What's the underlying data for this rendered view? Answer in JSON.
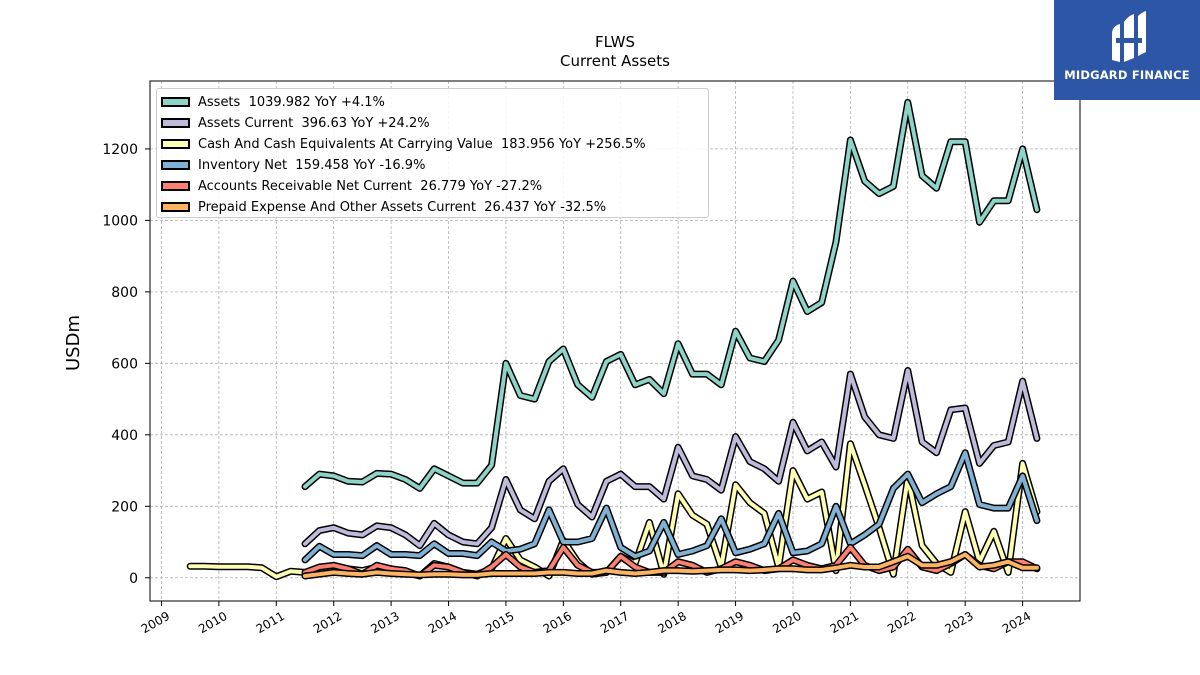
{
  "header": {
    "ticker": "FLWS",
    "subtitle": "Current  Assets"
  },
  "logo": {
    "text": "MIDGARD FINANCE",
    "icon": "midgard-logo-icon",
    "background": "#2d56a6"
  },
  "chart_data": {
    "type": "line",
    "ylabel": "USDm",
    "xlabel": "",
    "ylim": [
      -65,
      1390
    ],
    "xlim": [
      2008.8,
      2025.0
    ],
    "grid": true,
    "legend_position": "top-left",
    "yticks": [
      0,
      200,
      400,
      600,
      800,
      1000,
      1200
    ],
    "xticks": [
      "2009",
      "2010",
      "2011",
      "2012",
      "2013",
      "2014",
      "2015",
      "2016",
      "2017",
      "2018",
      "2019",
      "2020",
      "2021",
      "2022",
      "2023",
      "2024"
    ],
    "series": [
      {
        "name": "Assets",
        "legend": "Assets  1039.982 YoY +4.1%",
        "color": "#8dd3c7",
        "x": [
          2011.5,
          2011.75,
          2012.0,
          2012.25,
          2012.5,
          2012.75,
          2013.0,
          2013.25,
          2013.5,
          2013.75,
          2014.0,
          2014.25,
          2014.5,
          2014.75,
          2015.0,
          2015.25,
          2015.5,
          2015.75,
          2016.0,
          2016.25,
          2016.5,
          2016.75,
          2017.0,
          2017.25,
          2017.5,
          2017.75,
          2018.0,
          2018.25,
          2018.5,
          2018.75,
          2019.0,
          2019.25,
          2019.5,
          2019.75,
          2020.0,
          2020.25,
          2020.5,
          2020.75,
          2021.0,
          2021.25,
          2021.5,
          2021.75,
          2022.0,
          2022.25,
          2022.5,
          2022.75,
          2023.0,
          2023.25,
          2023.5,
          2023.75,
          2024.0,
          2024.25
        ],
        "values": [
          255,
          290,
          285,
          270,
          268,
          292,
          290,
          275,
          250,
          305,
          285,
          265,
          265,
          315,
          600,
          510,
          500,
          605,
          640,
          540,
          505,
          605,
          625,
          540,
          555,
          515,
          655,
          570,
          570,
          540,
          690,
          615,
          605,
          665,
          830,
          745,
          770,
          940,
          1225,
          1110,
          1075,
          1095,
          1330,
          1125,
          1090,
          1220,
          1220,
          995,
          1055,
          1055,
          1200,
          1030
        ]
      },
      {
        "name": "Assets Current",
        "legend": "Assets Current  396.63 YoY +24.2%",
        "color": "#bebada",
        "x": [
          2011.5,
          2011.75,
          2012.0,
          2012.25,
          2012.5,
          2012.75,
          2013.0,
          2013.25,
          2013.5,
          2013.75,
          2014.0,
          2014.25,
          2014.5,
          2014.75,
          2015.0,
          2015.25,
          2015.5,
          2015.75,
          2016.0,
          2016.25,
          2016.5,
          2016.75,
          2017.0,
          2017.25,
          2017.5,
          2017.75,
          2018.0,
          2018.25,
          2018.5,
          2018.75,
          2019.0,
          2019.25,
          2019.5,
          2019.75,
          2020.0,
          2020.25,
          2020.5,
          2020.75,
          2021.0,
          2021.25,
          2021.5,
          2021.75,
          2022.0,
          2022.25,
          2022.5,
          2022.75,
          2023.0,
          2023.25,
          2023.5,
          2023.75,
          2024.0,
          2024.25
        ],
        "values": [
          95,
          132,
          140,
          125,
          120,
          145,
          140,
          120,
          90,
          152,
          120,
          100,
          95,
          140,
          275,
          190,
          165,
          270,
          305,
          205,
          170,
          270,
          290,
          255,
          255,
          220,
          365,
          285,
          275,
          245,
          395,
          325,
          305,
          270,
          435,
          355,
          380,
          310,
          570,
          450,
          400,
          390,
          580,
          380,
          350,
          470,
          475,
          320,
          370,
          380,
          550,
          390
        ]
      },
      {
        "name": "Cash And Cash Equivalents At Carrying Value",
        "legend": "Cash And Cash Equivalents At Carrying Value  183.956 YoY +256.5%",
        "color": "#ffffb3",
        "x": [
          2009.5,
          2009.75,
          2010.0,
          2010.25,
          2010.5,
          2010.75,
          2011.0,
          2011.25,
          2011.5,
          2011.75,
          2012.0,
          2012.25,
          2012.5,
          2012.75,
          2013.0,
          2013.25,
          2013.5,
          2013.75,
          2014.0,
          2014.25,
          2014.5,
          2014.75,
          2015.0,
          2015.25,
          2015.5,
          2015.75,
          2016.0,
          2016.25,
          2016.5,
          2016.75,
          2017.0,
          2017.25,
          2017.5,
          2017.75,
          2018.0,
          2018.25,
          2018.5,
          2018.75,
          2019.0,
          2019.25,
          2019.5,
          2019.75,
          2020.0,
          2020.25,
          2020.5,
          2020.75,
          2021.0,
          2021.25,
          2021.5,
          2021.75,
          2022.0,
          2022.25,
          2022.5,
          2022.75,
          2023.0,
          2023.25,
          2023.5,
          2023.75,
          2024.0,
          2024.25
        ],
        "values": [
          32,
          32,
          31,
          31,
          31,
          28,
          3,
          18,
          15,
          25,
          30,
          25,
          20,
          30,
          25,
          15,
          5,
          40,
          30,
          15,
          10,
          25,
          110,
          50,
          30,
          5,
          105,
          45,
          10,
          15,
          60,
          40,
          155,
          10,
          235,
          175,
          150,
          30,
          260,
          210,
          180,
          30,
          300,
          220,
          240,
          20,
          375,
          260,
          140,
          10,
          280,
          90,
          40,
          15,
          185,
          45,
          130,
          15,
          320,
          185
        ]
      },
      {
        "name": "Inventory Net",
        "legend": "Inventory Net  159.458 YoY -16.9%",
        "color": "#80b1d3",
        "x": [
          2011.5,
          2011.75,
          2012.0,
          2012.25,
          2012.5,
          2012.75,
          2013.0,
          2013.25,
          2013.5,
          2013.75,
          2014.0,
          2014.25,
          2014.5,
          2014.75,
          2015.0,
          2015.25,
          2015.5,
          2015.75,
          2016.0,
          2016.25,
          2016.5,
          2016.75,
          2017.0,
          2017.25,
          2017.5,
          2017.75,
          2018.0,
          2018.25,
          2018.5,
          2018.75,
          2019.0,
          2019.25,
          2019.5,
          2019.75,
          2020.0,
          2020.25,
          2020.5,
          2020.75,
          2021.0,
          2021.25,
          2021.5,
          2021.75,
          2022.0,
          2022.25,
          2022.5,
          2022.75,
          2023.0,
          2023.25,
          2023.5,
          2023.75,
          2024.0,
          2024.25
        ],
        "values": [
          50,
          88,
          65,
          65,
          62,
          90,
          65,
          65,
          62,
          95,
          68,
          68,
          62,
          100,
          75,
          80,
          95,
          190,
          100,
          100,
          110,
          195,
          85,
          60,
          75,
          155,
          65,
          75,
          90,
          165,
          70,
          80,
          95,
          180,
          70,
          75,
          95,
          200,
          95,
          120,
          150,
          250,
          290,
          210,
          235,
          255,
          350,
          205,
          195,
          195,
          285,
          160
        ]
      },
      {
        "name": "Accounts Receivable Net Current",
        "legend": "Accounts Receivable Net Current  26.779 YoY -27.2%",
        "color": "#fb8072",
        "x": [
          2011.5,
          2011.75,
          2012.0,
          2012.25,
          2012.5,
          2012.75,
          2013.0,
          2013.25,
          2013.5,
          2013.75,
          2014.0,
          2014.25,
          2014.5,
          2014.75,
          2015.0,
          2015.25,
          2015.5,
          2015.75,
          2016.0,
          2016.25,
          2016.5,
          2016.75,
          2017.0,
          2017.25,
          2017.5,
          2017.75,
          2018.0,
          2018.25,
          2018.5,
          2018.75,
          2019.0,
          2019.25,
          2019.5,
          2019.75,
          2020.0,
          2020.25,
          2020.5,
          2020.75,
          2021.0,
          2021.25,
          2021.5,
          2021.75,
          2022.0,
          2022.25,
          2022.5,
          2022.75,
          2023.0,
          2023.25,
          2023.5,
          2023.75,
          2024.0,
          2024.25
        ],
        "values": [
          15,
          30,
          35,
          25,
          10,
          35,
          25,
          20,
          5,
          35,
          30,
          15,
          5,
          30,
          65,
          30,
          15,
          20,
          85,
          35,
          15,
          15,
          60,
          30,
          15,
          15,
          45,
          35,
          15,
          25,
          45,
          35,
          20,
          25,
          50,
          35,
          25,
          35,
          85,
          35,
          20,
          30,
          80,
          30,
          20,
          40,
          65,
          35,
          25,
          45,
          45,
          25
        ]
      },
      {
        "name": "Prepaid Expense And Other Assets Current",
        "legend": "Prepaid Expense And Other Assets Current  26.437 YoY -32.5%",
        "color": "#fdb462",
        "x": [
          2011.5,
          2011.75,
          2012.0,
          2012.25,
          2012.5,
          2012.75,
          2013.0,
          2013.25,
          2013.5,
          2013.75,
          2014.0,
          2014.25,
          2014.5,
          2014.75,
          2015.0,
          2015.25,
          2015.5,
          2015.75,
          2016.0,
          2016.25,
          2016.5,
          2016.75,
          2017.0,
          2017.25,
          2017.5,
          2017.75,
          2018.0,
          2018.25,
          2018.5,
          2018.75,
          2019.0,
          2019.25,
          2019.5,
          2019.75,
          2020.0,
          2020.25,
          2020.5,
          2020.75,
          2021.0,
          2021.25,
          2021.5,
          2021.75,
          2022.0,
          2022.25,
          2022.5,
          2022.75,
          2023.0,
          2023.25,
          2023.5,
          2023.75,
          2024.0,
          2024.25
        ],
        "values": [
          5,
          10,
          15,
          12,
          10,
          15,
          12,
          10,
          8,
          10,
          10,
          8,
          8,
          12,
          12,
          12,
          12,
          15,
          15,
          12,
          12,
          20,
          15,
          12,
          15,
          20,
          20,
          18,
          20,
          22,
          22,
          20,
          22,
          25,
          25,
          22,
          22,
          28,
          35,
          30,
          30,
          45,
          60,
          35,
          35,
          45,
          65,
          30,
          35,
          45,
          28,
          28
        ]
      }
    ]
  }
}
